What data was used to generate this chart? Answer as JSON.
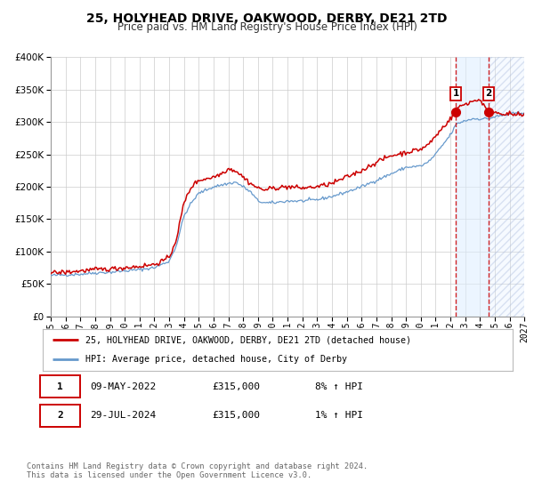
{
  "title": "25, HOLYHEAD DRIVE, OAKWOOD, DERBY, DE21 2TD",
  "subtitle": "Price paid vs. HM Land Registry's House Price Index (HPI)",
  "legend_line1": "25, HOLYHEAD DRIVE, OAKWOOD, DERBY, DE21 2TD (detached house)",
  "legend_line2": "HPI: Average price, detached house, City of Derby",
  "sale1_label": "1",
  "sale1_date": "09-MAY-2022",
  "sale1_price": "£315,000",
  "sale1_hpi": "8% ↑ HPI",
  "sale1_year": 2022.36,
  "sale1_value": 315000,
  "sale2_label": "2",
  "sale2_date": "29-JUL-2024",
  "sale2_price": "£315,000",
  "sale2_hpi": "1% ↑ HPI",
  "sale2_year": 2024.57,
  "sale2_value": 315000,
  "red_color": "#cc0000",
  "blue_color": "#6699cc",
  "background_color": "#ffffff",
  "grid_color": "#cccccc",
  "shade_color": "#ddeeff",
  "xmin": 1995,
  "xmax": 2027,
  "ymin": 0,
  "ymax": 400000,
  "yticks": [
    0,
    50000,
    100000,
    150000,
    200000,
    250000,
    300000,
    350000,
    400000
  ],
  "xticks": [
    1995,
    1996,
    1997,
    1998,
    1999,
    2000,
    2001,
    2002,
    2003,
    2004,
    2005,
    2006,
    2007,
    2008,
    2009,
    2010,
    2011,
    2012,
    2013,
    2014,
    2015,
    2016,
    2017,
    2018,
    2019,
    2020,
    2021,
    2022,
    2023,
    2024,
    2025,
    2026,
    2027
  ],
  "footer": "Contains HM Land Registry data © Crown copyright and database right 2024.\nThis data is licensed under the Open Government Licence v3.0."
}
